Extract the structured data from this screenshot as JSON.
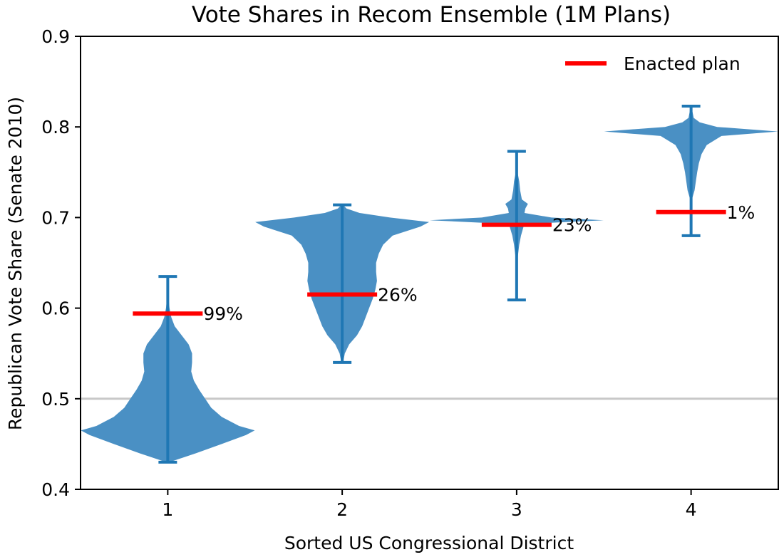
{
  "chart_data": {
    "type": "violin",
    "title": "Vote Shares in Recom Ensemble (1M Plans)",
    "xlabel": "Sorted US Congressional District",
    "ylabel": "Republican Vote Share (Senate 2010)",
    "xlim": [
      0.5,
      4.5
    ],
    "ylim": [
      0.4,
      0.9
    ],
    "xticks": [
      "1",
      "2",
      "3",
      "4"
    ],
    "yticks": [
      "0.4",
      "0.5",
      "0.6",
      "0.7",
      "0.8",
      "0.9"
    ],
    "reference_line": 0.5,
    "legend": {
      "position": "top-right",
      "label": "Enacted plan"
    },
    "colors": {
      "violin": "#4a90c4",
      "whisker": "#1f77b4",
      "enacted": "#ff0000",
      "reference": "#c8c8c8"
    },
    "districts": [
      {
        "district": "1",
        "min": 0.43,
        "max": 0.635,
        "enacted": 0.594,
        "percentile_label": "99%",
        "profile": [
          [
            0.43,
            0.02
          ],
          [
            0.44,
            0.33
          ],
          [
            0.45,
            0.62
          ],
          [
            0.46,
            0.9
          ],
          [
            0.465,
            1.0
          ],
          [
            0.47,
            0.82
          ],
          [
            0.48,
            0.62
          ],
          [
            0.49,
            0.5
          ],
          [
            0.5,
            0.43
          ],
          [
            0.51,
            0.36
          ],
          [
            0.52,
            0.3
          ],
          [
            0.53,
            0.27
          ],
          [
            0.54,
            0.28
          ],
          [
            0.55,
            0.28
          ],
          [
            0.56,
            0.24
          ],
          [
            0.57,
            0.16
          ],
          [
            0.58,
            0.08
          ],
          [
            0.59,
            0.04
          ],
          [
            0.6,
            0.02
          ],
          [
            0.61,
            0.01
          ],
          [
            0.635,
            0.005
          ]
        ]
      },
      {
        "district": "2",
        "min": 0.54,
        "max": 0.714,
        "enacted": 0.615,
        "percentile_label": "26%",
        "profile": [
          [
            0.54,
            0.01
          ],
          [
            0.55,
            0.03
          ],
          [
            0.56,
            0.08
          ],
          [
            0.57,
            0.17
          ],
          [
            0.58,
            0.23
          ],
          [
            0.59,
            0.27
          ],
          [
            0.6,
            0.31
          ],
          [
            0.61,
            0.35
          ],
          [
            0.62,
            0.38
          ],
          [
            0.63,
            0.4
          ],
          [
            0.64,
            0.39
          ],
          [
            0.65,
            0.39
          ],
          [
            0.66,
            0.42
          ],
          [
            0.67,
            0.47
          ],
          [
            0.68,
            0.58
          ],
          [
            0.69,
            0.9
          ],
          [
            0.695,
            1.0
          ],
          [
            0.7,
            0.55
          ],
          [
            0.705,
            0.2
          ],
          [
            0.71,
            0.05
          ],
          [
            0.714,
            0.01
          ]
        ]
      },
      {
        "district": "3",
        "min": 0.609,
        "max": 0.773,
        "enacted": 0.692,
        "percentile_label": "23%",
        "profile": [
          [
            0.609,
            0.003
          ],
          [
            0.65,
            0.005
          ],
          [
            0.67,
            0.03
          ],
          [
            0.68,
            0.05
          ],
          [
            0.69,
            0.08
          ],
          [
            0.694,
            0.35
          ],
          [
            0.697,
            1.0
          ],
          [
            0.7,
            0.4
          ],
          [
            0.705,
            0.09
          ],
          [
            0.71,
            0.1
          ],
          [
            0.715,
            0.13
          ],
          [
            0.72,
            0.06
          ],
          [
            0.73,
            0.04
          ],
          [
            0.74,
            0.03
          ],
          [
            0.75,
            0.01
          ],
          [
            0.773,
            0.003
          ]
        ]
      },
      {
        "district": "4",
        "min": 0.68,
        "max": 0.823,
        "enacted": 0.706,
        "percentile_label": "1%",
        "profile": [
          [
            0.68,
            0.003
          ],
          [
            0.7,
            0.005
          ],
          [
            0.72,
            0.01
          ],
          [
            0.73,
            0.04
          ],
          [
            0.75,
            0.07
          ],
          [
            0.76,
            0.09
          ],
          [
            0.77,
            0.12
          ],
          [
            0.78,
            0.18
          ],
          [
            0.79,
            0.35
          ],
          [
            0.795,
            1.0
          ],
          [
            0.8,
            0.3
          ],
          [
            0.805,
            0.1
          ],
          [
            0.81,
            0.03
          ],
          [
            0.823,
            0.003
          ]
        ]
      }
    ]
  }
}
